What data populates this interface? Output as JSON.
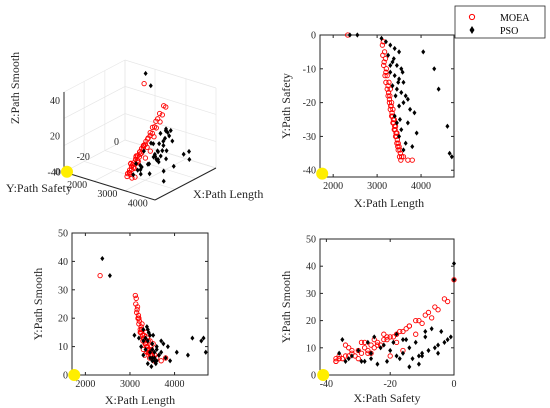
{
  "legend": [
    {
      "name": "MOEA",
      "marker": "circle",
      "color": "#ff0000"
    },
    {
      "name": "PSO",
      "marker": "diamond",
      "color": "#000000"
    }
  ],
  "ideal_point_color": "#ffee00",
  "chart_data": [
    {
      "type": "scatter",
      "projection": "3d",
      "xlabel": "X:Path Length",
      "ylabel": "Y:Path Safety",
      "zlabel": "Z:Path Smooth",
      "xticks": [
        "2000",
        "3000",
        "4000"
      ],
      "yticks": [
        "-40",
        "-20",
        "0"
      ],
      "zticks": [
        "0",
        "20",
        "40"
      ],
      "xlim": [
        1700,
        4700
      ],
      "ylim": [
        -42,
        0
      ],
      "zlim": [
        0,
        45
      ]
    },
    {
      "type": "scatter",
      "xlabel": "X:Path Length",
      "ylabel": "Y:Path Safety",
      "xticks": [
        "2000",
        "3000",
        "4000"
      ],
      "yticks": [
        "0",
        "-10",
        "-20",
        "-30",
        "-40"
      ],
      "xlim": [
        1700,
        4750
      ],
      "ylim": [
        -42,
        0
      ]
    },
    {
      "type": "scatter",
      "xlabel": "X:Path Length",
      "ylabel": "Y:Path Smooth",
      "xticks": [
        "2000",
        "3000",
        "4000"
      ],
      "yticks": [
        "0",
        "10",
        "20",
        "30",
        "40",
        "50"
      ],
      "xlim": [
        1700,
        4750
      ],
      "ylim": [
        0,
        50
      ]
    },
    {
      "type": "scatter",
      "xlabel": "X:Path Safety",
      "ylabel": "Y:Path Smooth",
      "xticks": [
        "-40",
        "-20",
        "0"
      ],
      "yticks": [
        "0",
        "10",
        "20",
        "30",
        "40",
        "50"
      ],
      "xlim": [
        -42,
        0
      ],
      "ylim": [
        0,
        50
      ]
    }
  ],
  "series": {
    "ideal": [
      1750,
      -41,
      0
    ],
    "MOEA": [
      [
        2330,
        0,
        35
      ],
      [
        3120,
        -3,
        28
      ],
      [
        3130,
        -6,
        25
      ],
      [
        3150,
        -9,
        22
      ],
      [
        3180,
        -12,
        20
      ],
      [
        3200,
        -14,
        18
      ],
      [
        3230,
        -16,
        16
      ],
      [
        3250,
        -18,
        15
      ],
      [
        3280,
        -20,
        14
      ],
      [
        3300,
        -22,
        13
      ],
      [
        3330,
        -24,
        12
      ],
      [
        3360,
        -26,
        11
      ],
      [
        3390,
        -28,
        10
      ],
      [
        3420,
        -30,
        9
      ],
      [
        3450,
        -32,
        8
      ],
      [
        3480,
        -34,
        7
      ],
      [
        3510,
        -36,
        6
      ],
      [
        3540,
        -37,
        5
      ],
      [
        3160,
        -8,
        23
      ],
      [
        3200,
        -11,
        20
      ],
      [
        3250,
        -15,
        17
      ],
      [
        3280,
        -19,
        14
      ],
      [
        3310,
        -21,
        13
      ],
      [
        3340,
        -23,
        11
      ],
      [
        3370,
        -25,
        10
      ],
      [
        3400,
        -27,
        9
      ],
      [
        3430,
        -29,
        8
      ],
      [
        3460,
        -31,
        7
      ],
      [
        3500,
        -33,
        7
      ],
      [
        3530,
        -35,
        6
      ],
      [
        3600,
        -36,
        6
      ],
      [
        3700,
        -37,
        5
      ],
      [
        3800,
        -37,
        6
      ],
      [
        3140,
        -2,
        27
      ],
      [
        3170,
        -5,
        24
      ],
      [
        3210,
        -10,
        19
      ],
      [
        3260,
        -17,
        16
      ],
      [
        3290,
        -18,
        12
      ],
      [
        3320,
        -21,
        14
      ],
      [
        3350,
        -24,
        11
      ],
      [
        3380,
        -26,
        8
      ],
      [
        3410,
        -28,
        12
      ],
      [
        3440,
        -30,
        6
      ],
      [
        3470,
        -33,
        10
      ],
      [
        3190,
        -7,
        21
      ],
      [
        3230,
        -12,
        15
      ],
      [
        3270,
        -14,
        18
      ],
      [
        3300,
        -16,
        9
      ],
      [
        3330,
        -20,
        7
      ],
      [
        3360,
        -22,
        15
      ],
      [
        3390,
        -25,
        13
      ],
      [
        3420,
        -27,
        8
      ],
      [
        3450,
        -29,
        12
      ],
      [
        3480,
        -32,
        9
      ],
      [
        3520,
        -34,
        11
      ],
      [
        3560,
        -36,
        7
      ]
    ],
    "PSO": [
      [
        2380,
        0,
        41
      ],
      [
        2550,
        0,
        35
      ],
      [
        3100,
        -1,
        14
      ],
      [
        3200,
        -2,
        13
      ],
      [
        3300,
        -3,
        12
      ],
      [
        3400,
        -4,
        16
      ],
      [
        3500,
        -5,
        11
      ],
      [
        3250,
        -6,
        10
      ],
      [
        3350,
        -8,
        9
      ],
      [
        3450,
        -9,
        14
      ],
      [
        3550,
        -10,
        8
      ],
      [
        3300,
        -11,
        7
      ],
      [
        3400,
        -12,
        12
      ],
      [
        3500,
        -13,
        6
      ],
      [
        3600,
        -14,
        10
      ],
      [
        3350,
        -15,
        13
      ],
      [
        3450,
        -16,
        8
      ],
      [
        3550,
        -17,
        6
      ],
      [
        3650,
        -18,
        7
      ],
      [
        3700,
        -19,
        12
      ],
      [
        3600,
        -20,
        9
      ],
      [
        3500,
        -21,
        5
      ],
      [
        3750,
        -22,
        11
      ],
      [
        3850,
        -23,
        10
      ],
      [
        4050,
        -5,
        8
      ],
      [
        4300,
        -10,
        7
      ],
      [
        4400,
        -16,
        13
      ],
      [
        4600,
        -27,
        12
      ],
      [
        4650,
        -35,
        13
      ],
      [
        4700,
        -36,
        8
      ],
      [
        3400,
        -24,
        4
      ],
      [
        3450,
        -26,
        6
      ],
      [
        3550,
        -28,
        5
      ],
      [
        3500,
        -30,
        9
      ],
      [
        3650,
        -32,
        7
      ],
      [
        3600,
        -34,
        5
      ],
      [
        3380,
        -7,
        17
      ],
      [
        3420,
        -18,
        15
      ],
      [
        3480,
        -14,
        3
      ],
      [
        3520,
        -25,
        14
      ],
      [
        3580,
        -11,
        4
      ],
      [
        3700,
        -26,
        8
      ],
      [
        3900,
        -29,
        5
      ],
      [
        3800,
        -33,
        6
      ],
      [
        3300,
        -9,
        16
      ]
    ]
  }
}
